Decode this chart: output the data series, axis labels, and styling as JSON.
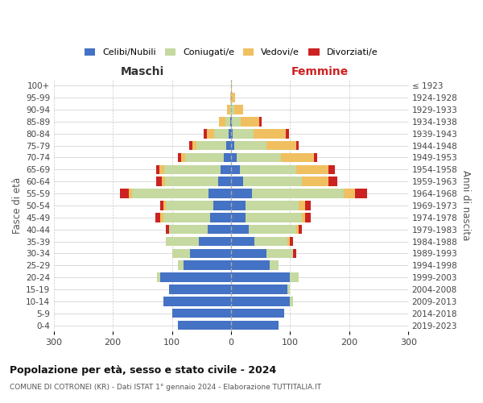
{
  "age_groups": [
    "0-4",
    "5-9",
    "10-14",
    "15-19",
    "20-24",
    "25-29",
    "30-34",
    "35-39",
    "40-44",
    "45-49",
    "50-54",
    "55-59",
    "60-64",
    "65-69",
    "70-74",
    "75-79",
    "80-84",
    "85-89",
    "90-94",
    "95-99",
    "100+"
  ],
  "birth_years": [
    "2019-2023",
    "2014-2018",
    "2009-2013",
    "2004-2008",
    "1999-2003",
    "1994-1998",
    "1989-1993",
    "1984-1988",
    "1979-1983",
    "1974-1978",
    "1969-1973",
    "1964-1968",
    "1959-1963",
    "1954-1958",
    "1949-1953",
    "1944-1948",
    "1939-1943",
    "1934-1938",
    "1929-1933",
    "1924-1928",
    "≤ 1923"
  ],
  "colors": {
    "celibe": "#4472c4",
    "coniugato": "#c5d9a0",
    "vedovo": "#f0c060",
    "divorziato": "#cc2222"
  },
  "males": {
    "celibe": [
      90,
      100,
      115,
      105,
      120,
      80,
      70,
      55,
      40,
      35,
      30,
      38,
      22,
      18,
      12,
      8,
      4,
      2,
      0,
      0,
      0
    ],
    "coniugato": [
      0,
      0,
      0,
      0,
      5,
      10,
      30,
      55,
      65,
      80,
      80,
      130,
      90,
      95,
      65,
      50,
      25,
      8,
      2,
      0,
      0
    ],
    "vedovo": [
      0,
      0,
      0,
      0,
      0,
      0,
      0,
      0,
      0,
      5,
      5,
      5,
      5,
      8,
      8,
      8,
      12,
      10,
      5,
      2,
      0
    ],
    "divorziato": [
      0,
      0,
      0,
      0,
      0,
      0,
      0,
      0,
      5,
      8,
      5,
      15,
      10,
      5,
      5,
      5,
      5,
      0,
      0,
      0,
      0
    ]
  },
  "females": {
    "celibe": [
      80,
      90,
      100,
      95,
      100,
      65,
      60,
      40,
      30,
      25,
      25,
      35,
      20,
      15,
      10,
      5,
      3,
      2,
      0,
      0,
      0
    ],
    "coniugato": [
      0,
      0,
      5,
      5,
      15,
      15,
      45,
      55,
      80,
      95,
      90,
      155,
      100,
      95,
      75,
      55,
      35,
      15,
      5,
      2,
      0
    ],
    "vedovo": [
      0,
      0,
      0,
      0,
      0,
      0,
      0,
      5,
      5,
      5,
      10,
      20,
      45,
      55,
      55,
      50,
      55,
      30,
      15,
      5,
      2
    ],
    "divorziato": [
      0,
      0,
      0,
      0,
      0,
      0,
      5,
      5,
      5,
      10,
      10,
      20,
      15,
      10,
      5,
      5,
      5,
      5,
      0,
      0,
      0
    ]
  },
  "title_main": "Popolazione per età, sesso e stato civile - 2024",
  "title_sub": "COMUNE DI COTRONEI (KR) - Dati ISTAT 1° gennaio 2024 - Elaborazione TUTTITALIA.IT",
  "xlabel_left": "Maschi",
  "xlabel_right": "Femmine",
  "ylabel_left": "Fasce di età",
  "ylabel_right": "Anni di nascita",
  "xlim": 300,
  "legend_labels": [
    "Celibi/Nubili",
    "Coniugati/e",
    "Vedovi/e",
    "Divorziati/e"
  ]
}
